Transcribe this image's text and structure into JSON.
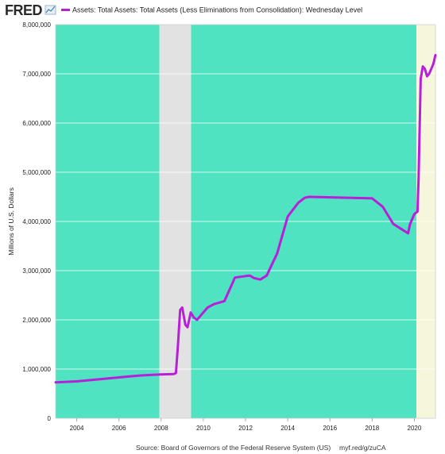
{
  "chart_data": {
    "type": "line",
    "title": "Assets: Total Assets: Total Assets (Less Eliminations from Consolidation): Wednesday Level",
    "brand": "FRED",
    "ylabel": "Millions of U.S. Dollars",
    "xlabel": "",
    "xlim": [
      2003.0,
      2021.0
    ],
    "ylim": [
      0,
      8000000
    ],
    "x_ticks": [
      2004,
      2006,
      2008,
      2010,
      2012,
      2014,
      2016,
      2018,
      2020
    ],
    "y_ticks": [
      0,
      1000000,
      2000000,
      3000000,
      4000000,
      5000000,
      6000000,
      7000000,
      8000000
    ],
    "y_tick_labels": [
      "0",
      "1,000,000",
      "2,000,000",
      "3,000,000",
      "4,000,000",
      "5,000,000",
      "6,000,000",
      "7,000,000",
      "8,000,000"
    ],
    "grid": true,
    "colors": {
      "expansion": "#4fe3c1",
      "recession": "#e2e2e2",
      "recent": "#f6f6dc",
      "line": "#b81fd8"
    },
    "shaded_periods": [
      {
        "kind": "expansion",
        "start": 2003.0,
        "end": 2007.92
      },
      {
        "kind": "recession",
        "start": 2007.92,
        "end": 2009.42
      },
      {
        "kind": "expansion",
        "start": 2009.42,
        "end": 2020.1
      },
      {
        "kind": "recent",
        "start": 2020.1,
        "end": 2021.0
      }
    ],
    "series": [
      {
        "name": "Assets: Total Assets: Total Assets (Less Eliminations from Consolidation): Wednesday Level",
        "x": [
          2003.0,
          2003.5,
          2004.0,
          2004.5,
          2005.0,
          2005.5,
          2006.0,
          2006.5,
          2007.0,
          2007.5,
          2008.0,
          2008.6,
          2008.7,
          2008.8,
          2008.9,
          2009.0,
          2009.15,
          2009.25,
          2009.4,
          2009.55,
          2009.7,
          2009.9,
          2010.2,
          2010.5,
          2011.0,
          2011.5,
          2012.0,
          2012.2,
          2012.4,
          2012.7,
          2013.0,
          2013.5,
          2014.0,
          2014.5,
          2014.8,
          2015.0,
          2016.0,
          2017.0,
          2018.0,
          2018.5,
          2019.0,
          2019.7,
          2019.8,
          2020.0,
          2020.15,
          2020.2,
          2020.3,
          2020.4,
          2020.5,
          2020.6,
          2020.7,
          2020.8,
          2020.9,
          2021.0
        ],
        "values": [
          730000,
          740000,
          750000,
          770000,
          790000,
          810000,
          830000,
          850000,
          870000,
          880000,
          890000,
          900000,
          920000,
          1500000,
          2200000,
          2250000,
          1900000,
          1850000,
          2150000,
          2050000,
          2000000,
          2100000,
          2250000,
          2320000,
          2380000,
          2860000,
          2890000,
          2900000,
          2850000,
          2820000,
          2900000,
          3350000,
          4100000,
          4380000,
          4480000,
          4500000,
          4490000,
          4480000,
          4470000,
          4300000,
          3950000,
          3760000,
          3950000,
          4150000,
          4200000,
          4900000,
          6900000,
          7150000,
          7100000,
          6950000,
          7000000,
          7100000,
          7200000,
          7380000
        ]
      }
    ],
    "source": "Source: Board of Governors of the Federal Reserve System (US)",
    "short_url": "myf.red/g/zuCA"
  }
}
